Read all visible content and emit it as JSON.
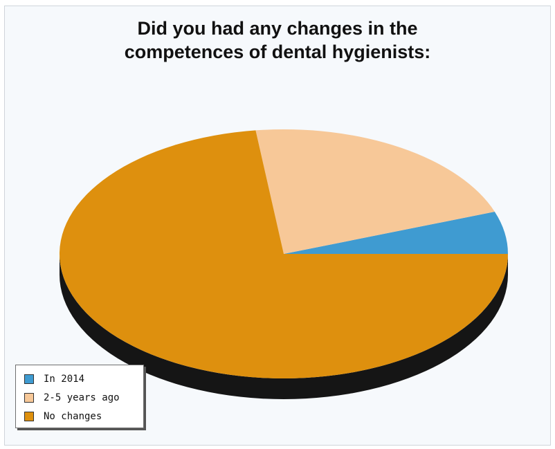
{
  "chart_data": {
    "type": "pie",
    "title_lines": [
      "Did you had any changes in the",
      "competences of dental hygienists:"
    ],
    "categories": [
      "In 2014",
      "2-5 years ago",
      "No changes"
    ],
    "values": [
      5.5,
      21.5,
      73
    ],
    "colors": [
      "#3f9bd1",
      "#f7c898",
      "#de900e"
    ],
    "legend_position": "bottom-left",
    "style": "3d"
  }
}
